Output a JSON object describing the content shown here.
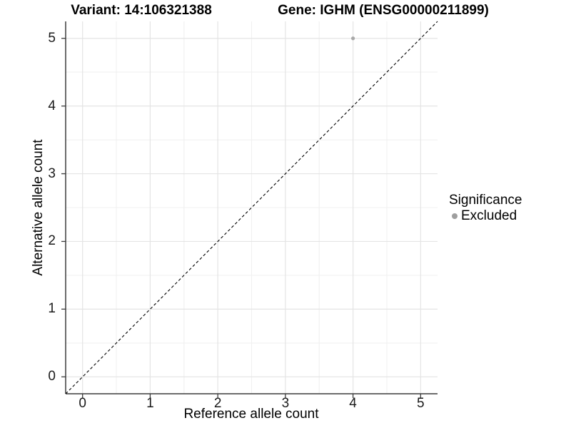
{
  "chart_data": {
    "type": "scatter",
    "title_left": "Variant: 14:106321388",
    "title_right": "Gene: IGHM (ENSG00000211899)",
    "xlabel": "Reference allele count",
    "ylabel": "Alternative allele count",
    "xlim": [
      -0.25,
      5.25
    ],
    "ylim": [
      -0.25,
      5.25
    ],
    "x_ticks": [
      0,
      1,
      2,
      3,
      4,
      5
    ],
    "y_ticks": [
      0,
      1,
      2,
      3,
      4,
      5
    ],
    "minor_grid_step": 0.5,
    "grid": "on",
    "points": [
      {
        "x": 4,
        "y": 5,
        "significance": "Excluded"
      }
    ],
    "point_color": "#a8a8a8",
    "identity_line": {
      "slope": 1,
      "intercept": 0,
      "style": "dashed",
      "color": "#000000"
    },
    "legend": {
      "title": "Significance",
      "position": "right",
      "items": [
        {
          "label": "Excluded",
          "color": "#9e9e9e"
        }
      ]
    }
  },
  "colors": {
    "background": "#ffffff",
    "grid_major": "#e4e4e4",
    "grid_minor": "#f1f1f1",
    "axis_line": "#3b3b3b",
    "tick_text": "#1a1a1a"
  }
}
